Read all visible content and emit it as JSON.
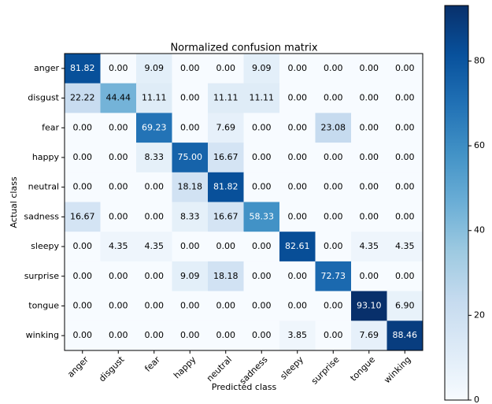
{
  "chart_data": {
    "type": "heatmap",
    "title": "Normalized confusion matrix",
    "xlabel": "Predicted class",
    "ylabel": "Actual class",
    "categories": [
      "anger",
      "disgust",
      "fear",
      "happy",
      "neutral",
      "sadness",
      "sleepy",
      "surprise",
      "tongue",
      "winking"
    ],
    "values": [
      [
        81.82,
        0,
        9.09,
        0,
        0,
        9.09,
        0,
        0,
        0,
        0
      ],
      [
        22.22,
        44.44,
        11.11,
        0,
        11.11,
        11.11,
        0,
        0,
        0,
        0
      ],
      [
        0,
        0,
        69.23,
        0,
        7.69,
        0,
        0,
        23.08,
        0,
        0
      ],
      [
        0,
        0,
        8.33,
        75,
        16.67,
        0,
        0,
        0,
        0,
        0
      ],
      [
        0,
        0,
        0,
        18.18,
        81.82,
        0,
        0,
        0,
        0,
        0
      ],
      [
        16.67,
        0,
        0,
        8.33,
        16.67,
        58.33,
        0,
        0,
        0,
        0
      ],
      [
        0,
        4.35,
        4.35,
        0,
        0,
        0,
        82.61,
        0,
        4.35,
        4.35
      ],
      [
        0,
        0,
        0,
        9.09,
        18.18,
        0,
        0,
        72.73,
        0,
        0
      ],
      [
        0,
        0,
        0,
        0,
        0,
        0,
        0,
        0,
        93.1,
        6.9
      ],
      [
        0,
        0,
        0,
        0,
        0,
        0,
        3.85,
        0,
        7.69,
        88.46
      ]
    ],
    "value_labels": [
      [
        "81.82",
        "0.00",
        "9.09",
        "0.00",
        "0.00",
        "9.09",
        "0.00",
        "0.00",
        "0.00",
        "0.00"
      ],
      [
        "22.22",
        "44.44",
        "11.11",
        "0.00",
        "11.11",
        "11.11",
        "0.00",
        "0.00",
        "0.00",
        "0.00"
      ],
      [
        "0.00",
        "0.00",
        "69.23",
        "0.00",
        "7.69",
        "0.00",
        "0.00",
        "23.08",
        "0.00",
        "0.00"
      ],
      [
        "0.00",
        "0.00",
        "8.33",
        "75.00",
        "16.67",
        "0.00",
        "0.00",
        "0.00",
        "0.00",
        "0.00"
      ],
      [
        "0.00",
        "0.00",
        "0.00",
        "18.18",
        "81.82",
        "0.00",
        "0.00",
        "0.00",
        "0.00",
        "0.00"
      ],
      [
        "16.67",
        "0.00",
        "0.00",
        "8.33",
        "16.67",
        "58.33",
        "0.00",
        "0.00",
        "0.00",
        "0.00"
      ],
      [
        "0.00",
        "4.35",
        "4.35",
        "0.00",
        "0.00",
        "0.00",
        "82.61",
        "0.00",
        "4.35",
        "4.35"
      ],
      [
        "0.00",
        "0.00",
        "0.00",
        "9.09",
        "18.18",
        "0.00",
        "0.00",
        "72.73",
        "0.00",
        "0.00"
      ],
      [
        "0.00",
        "0.00",
        "0.00",
        "0.00",
        "0.00",
        "0.00",
        "0.00",
        "0.00",
        "93.10",
        "6.90"
      ],
      [
        "0.00",
        "0.00",
        "0.00",
        "0.00",
        "0.00",
        "0.00",
        "3.85",
        "0.00",
        "7.69",
        "88.46"
      ]
    ],
    "colormap": "Blues",
    "clim": [
      0,
      93.1
    ],
    "cticks": [
      0,
      20,
      40,
      60,
      80
    ]
  }
}
